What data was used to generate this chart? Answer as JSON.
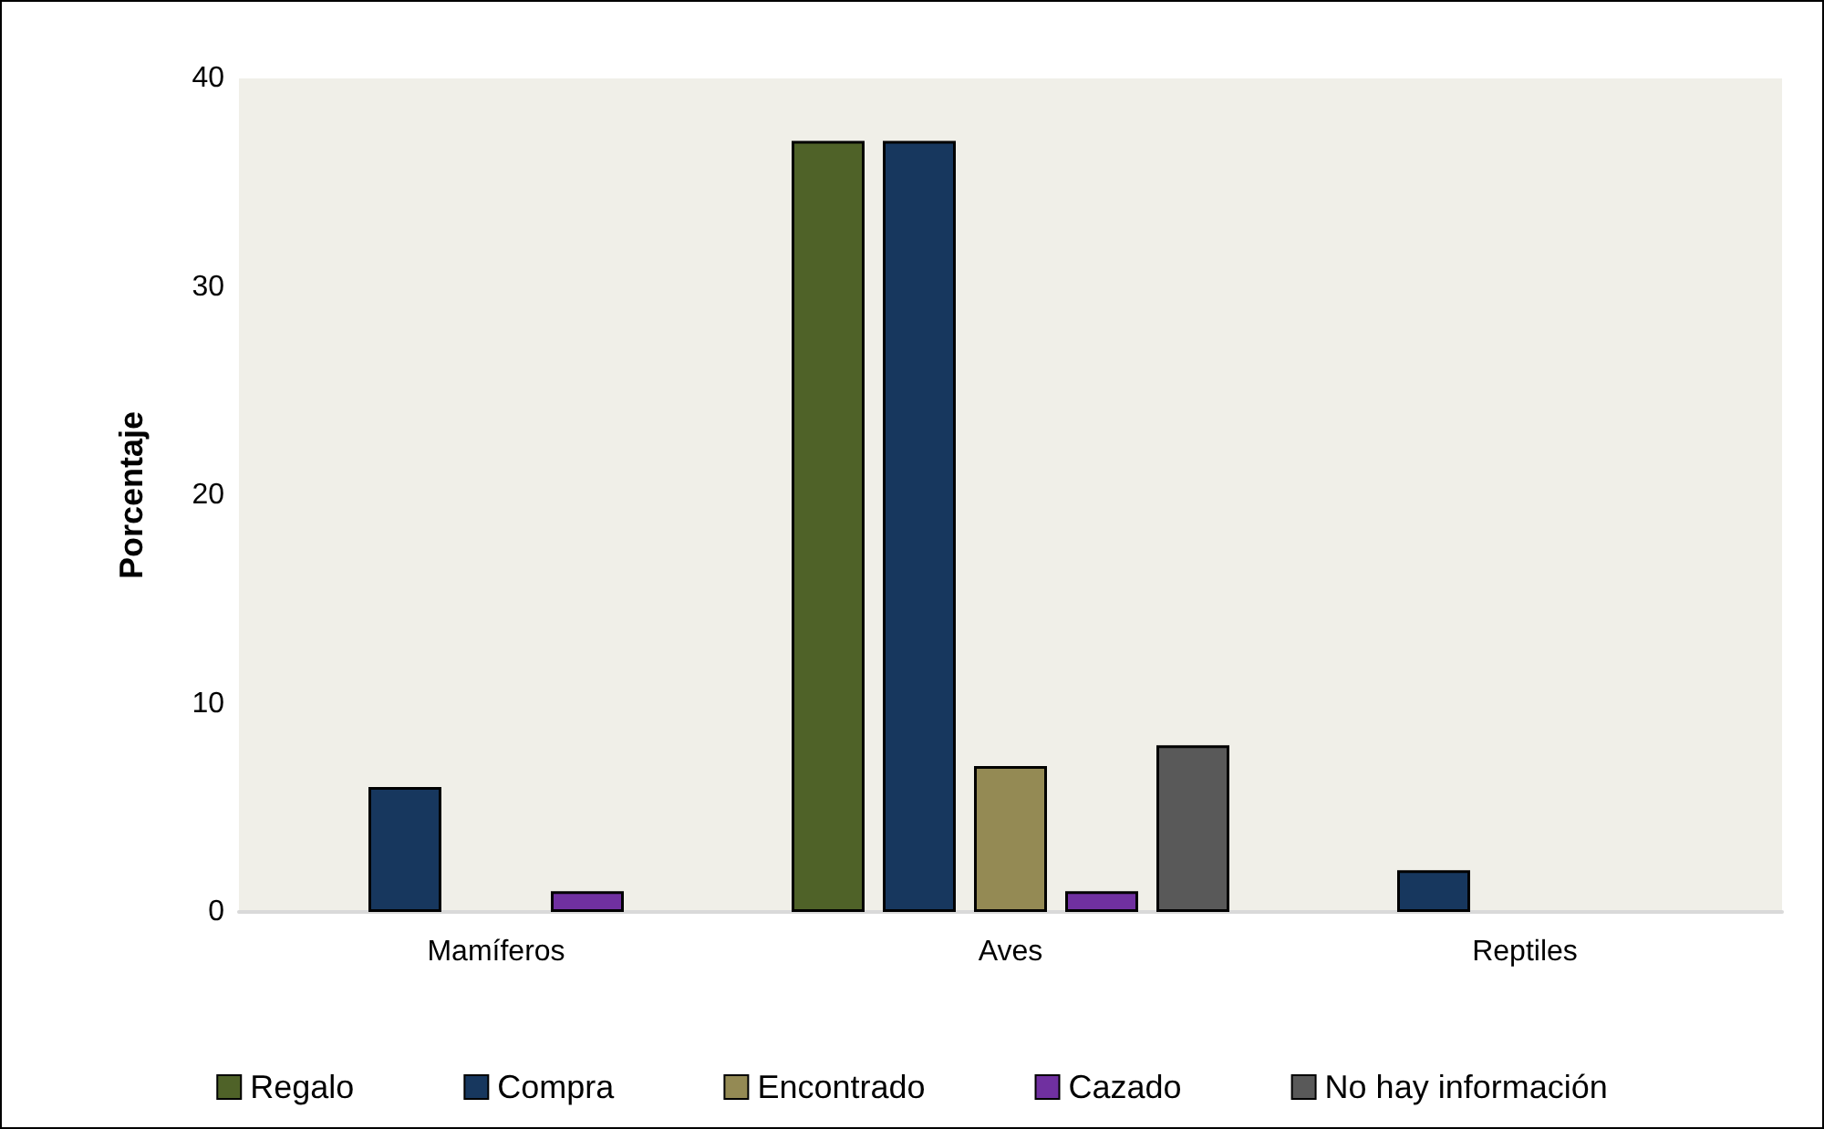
{
  "chart_data": {
    "type": "bar",
    "ylabel": "Porcentaje",
    "categories": [
      "Mamíferos",
      "Aves",
      "Reptiles"
    ],
    "series": [
      {
        "name": "Regalo",
        "color": "#4f6228",
        "values": [
          null,
          37,
          null
        ]
      },
      {
        "name": "Compra",
        "color": "#17375e",
        "values": [
          6,
          37,
          2
        ]
      },
      {
        "name": "Encontrado",
        "color": "#948a54",
        "values": [
          null,
          7,
          null
        ]
      },
      {
        "name": "Cazado",
        "color": "#7030a0",
        "values": [
          1,
          1,
          null
        ]
      },
      {
        "name": "No hay información",
        "color": "#595959",
        "values": [
          null,
          8,
          null
        ]
      }
    ],
    "ylim": [
      0,
      40
    ],
    "yticks": [
      0,
      10,
      20,
      30,
      40
    ],
    "grid": false,
    "legend": "bottom"
  }
}
